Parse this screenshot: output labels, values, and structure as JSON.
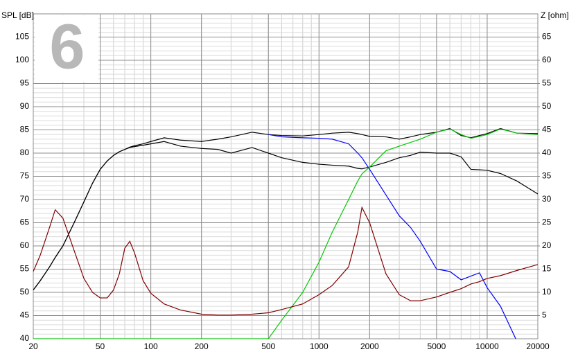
{
  "chart_data": {
    "type": "line",
    "badge": "6",
    "ylabel": "SPL [dB]",
    "y2label": "Z [ohm]",
    "xscale": "log",
    "grid": true,
    "minor_grid": true,
    "x": [
      20,
      22,
      25,
      27,
      30,
      35,
      40,
      45,
      50,
      55,
      60,
      65,
      70,
      75,
      80,
      90,
      100,
      120,
      150,
      200,
      250,
      300,
      400,
      500,
      600,
      800,
      1000,
      1200,
      1500,
      1700,
      1800,
      2000,
      2500,
      3000,
      3500,
      4000,
      5000,
      6000,
      7000,
      8000,
      9000,
      10000,
      12000,
      15000,
      20000
    ],
    "xlim": [
      20,
      20000
    ],
    "xticks": [
      20,
      50,
      100,
      200,
      500,
      1000,
      2000,
      5000,
      10000,
      20000
    ],
    "ylim": [
      40,
      110
    ],
    "yticks": [
      40,
      45,
      50,
      55,
      60,
      65,
      70,
      75,
      80,
      85,
      90,
      95,
      100,
      105
    ],
    "y2lim": [
      0,
      70
    ],
    "y2ticks": [
      5,
      10,
      15,
      20,
      25,
      30,
      35,
      40,
      45,
      50,
      55,
      60,
      65
    ],
    "series": [
      {
        "color": "#000000",
        "values": [
          50.5,
          52.5,
          55.5,
          57.5,
          60,
          65,
          69.5,
          73.5,
          76.5,
          78.3,
          79.5,
          80.3,
          80.8,
          81.3,
          81.6,
          82,
          82.5,
          83.3,
          82.8,
          82.5,
          83,
          83.5,
          84.5,
          84,
          83.8,
          83.7,
          84,
          84.3,
          84.5,
          84.2,
          84,
          83.6,
          83.5,
          83,
          83.5,
          84,
          84.5,
          85.3,
          83.8,
          83.3,
          83.8,
          84.2,
          85.3,
          84.3,
          84.2
        ]
      },
      {
        "color": "#000000",
        "values": [
          50.5,
          52.5,
          55.5,
          57.5,
          60,
          65,
          69.5,
          73.5,
          76.5,
          78.3,
          79.5,
          80.3,
          80.8,
          81.2,
          81.4,
          81.7,
          82,
          82.5,
          81.5,
          81,
          80.8,
          80,
          81.2,
          80,
          79,
          78,
          77.6,
          77.4,
          77.2,
          76.7,
          76.6,
          77,
          78,
          79,
          79.5,
          80.2,
          80,
          80,
          79.2,
          76.5,
          76.4,
          76.3,
          75.6,
          74,
          71.2
        ]
      },
      {
        "color": "#0000ff",
        "values": [
          null,
          null,
          null,
          null,
          null,
          null,
          null,
          null,
          null,
          null,
          null,
          null,
          null,
          null,
          null,
          null,
          null,
          null,
          null,
          null,
          null,
          null,
          null,
          84,
          83.5,
          83.3,
          83.2,
          83,
          82,
          80,
          79,
          76.5,
          71,
          66.5,
          64,
          61,
          55,
          54.5,
          52.7,
          53.5,
          54.2,
          51,
          47,
          39.5,
          null
        ]
      },
      {
        "color": "#00c800",
        "values": [
          40,
          40,
          40,
          40,
          40,
          40,
          40,
          40,
          40,
          40,
          40,
          40,
          40,
          40,
          40,
          40,
          40,
          40,
          40,
          40,
          40,
          40,
          40,
          40,
          44,
          50,
          56.5,
          63,
          70,
          74,
          75.5,
          77,
          80.5,
          81.5,
          82.3,
          83,
          84.5,
          85.2,
          84,
          83.2,
          83.6,
          84,
          85.2,
          84.3,
          84
        ]
      },
      {
        "color": "#800000",
        "axis": "y2",
        "values": [
          14.5,
          18,
          24,
          27.8,
          26,
          19,
          13,
          10,
          8.8,
          8.8,
          10.5,
          14,
          19.5,
          21,
          18.5,
          12.5,
          9.8,
          7.5,
          6.2,
          5.3,
          5.1,
          5.1,
          5.3,
          5.6,
          6.3,
          7.5,
          9.5,
          11.5,
          15.5,
          23,
          28.3,
          25,
          14,
          9.5,
          8.2,
          8.2,
          9,
          10,
          10.8,
          11.8,
          12.3,
          13,
          13.6,
          14.7,
          16
        ]
      }
    ]
  }
}
